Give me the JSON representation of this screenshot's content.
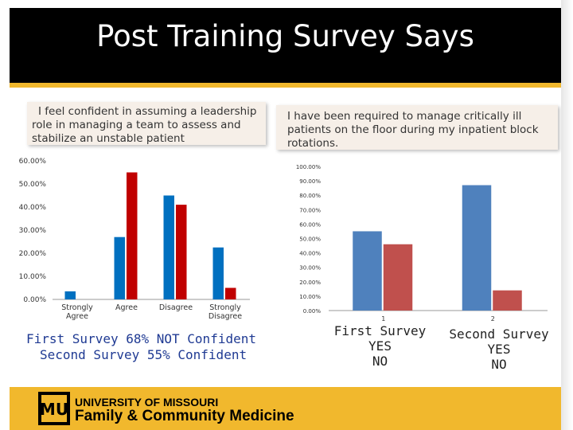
{
  "slide": {
    "title": "Post Training Survey Says",
    "question_left": "I feel confident in assuming a leadership role in managing a team to assess and stabilize an unstable patient",
    "question_right": "I have been required to manage critically ill patients on the floor during my inpatient block rotations.",
    "result_line1": "First Survey 68% NOT Confident",
    "result_line2": "Second Survey 55% Confident",
    "footer_line1": "UNIVERSITY OF MISSOURI",
    "footer_line2": "Family & Community Medicine",
    "logo_letters": "MU",
    "colors": {
      "blue": "#4472c4",
      "red": "#c00000",
      "dark_red": "#c0504d",
      "title_bg": "#000000",
      "gold": "#f1b82d",
      "box_bg": "#f6efe8"
    }
  },
  "legend": {
    "first_label": "First Survey",
    "first_answer": "YES",
    "first_answer2": "NO",
    "second_label": "Second Survey",
    "second_answer": "YES",
    "second_answer2": "NO"
  },
  "chart_data": [
    {
      "type": "bar",
      "categories": [
        "Strongly Agree",
        "Agree",
        "Disagree",
        "Strongly Disagree"
      ],
      "series": [
        {
          "values": [
            3.5,
            27,
            45,
            22.5
          ],
          "color": "#0070c0"
        },
        {
          "values": [
            0,
            55,
            41,
            5
          ],
          "color": "#c00000"
        }
      ],
      "ylim": [
        0,
        60
      ],
      "y_ticks": [
        "0.00%",
        "10.00%",
        "20.00%",
        "30.00%",
        "40.00%",
        "50.00%",
        "60.00%"
      ],
      "grid": false
    },
    {
      "type": "bar",
      "categories": [
        "1",
        "2"
      ],
      "series": [
        {
          "values": [
            55,
            87
          ],
          "color": "#4f81bd"
        },
        {
          "values": [
            46,
            14
          ],
          "color": "#c0504d"
        }
      ],
      "ylim": [
        0,
        100
      ],
      "y_ticks": [
        "0.00%",
        "10.00%",
        "20.00%",
        "30.00%",
        "40.00%",
        "50.00%",
        "60.00%",
        "70.00%",
        "80.00%",
        "90.00%",
        "100.00%"
      ],
      "grid": false
    }
  ]
}
